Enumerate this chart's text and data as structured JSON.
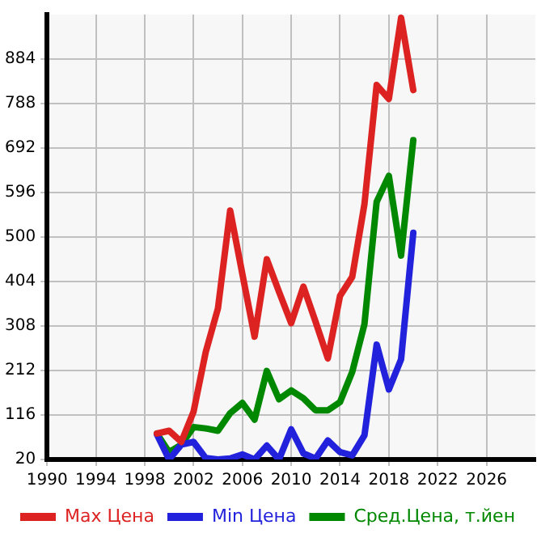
{
  "chart_data": {
    "type": "line",
    "x": [
      1999,
      2000,
      2001,
      2002,
      2003,
      2004,
      2005,
      2006,
      2007,
      2008,
      2009,
      2010,
      2011,
      2012,
      2013,
      2014,
      2015,
      2016,
      2017,
      2018,
      2019,
      2020
    ],
    "series": [
      {
        "name": "Max Цена",
        "color": "#dd2222",
        "values": [
          76,
          82,
          58,
          123,
          252,
          346,
          557,
          420,
          285,
          452,
          382,
          314,
          393,
          317,
          238,
          373,
          414,
          571,
          828,
          798,
          973,
          817
        ]
      },
      {
        "name": "Min Цена",
        "color": "#2222dd",
        "values": [
          74,
          20,
          52,
          58,
          23,
          20,
          22,
          31,
          20,
          50,
          20,
          85,
          33,
          22,
          61,
          36,
          29,
          72,
          268,
          171,
          236,
          509
        ]
      },
      {
        "name": "Сред.Цена, т.йен",
        "color": "#008800",
        "values": [
          76,
          36,
          52,
          90,
          87,
          82,
          120,
          142,
          106,
          211,
          150,
          169,
          152,
          126,
          126,
          144,
          209,
          312,
          576,
          632,
          460,
          709
        ]
      }
    ],
    "xlim": [
      1990,
      2030
    ],
    "xticks": [
      1990,
      1994,
      1998,
      2002,
      2006,
      2010,
      2014,
      2018,
      2022,
      2026
    ],
    "ylim": [
      20,
      980
    ],
    "yticks": [
      20,
      116,
      212,
      308,
      404,
      500,
      596,
      692,
      788,
      884
    ],
    "grid": true,
    "legend": "bottom",
    "marker": "none",
    "line_style": "solid"
  }
}
